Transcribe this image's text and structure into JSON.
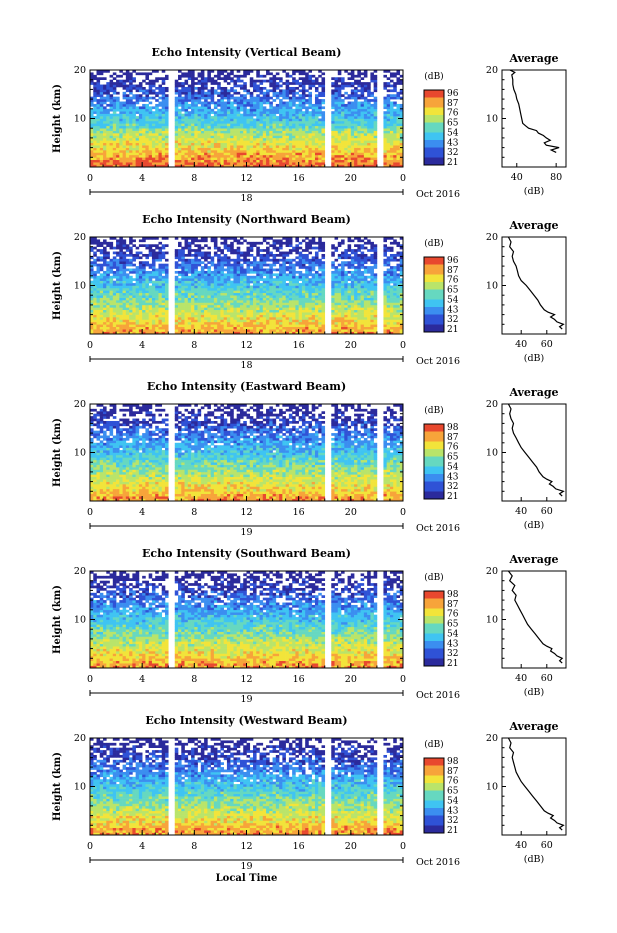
{
  "chart_data": [
    {
      "type": "heatmap",
      "title": "Echo Intensity (Vertical Beam)",
      "ylabel": "Height (km)",
      "xticks": [
        "0",
        "4",
        "8",
        "12",
        "16",
        "20",
        "0"
      ],
      "yticks": [
        "10",
        "20"
      ],
      "date_day": "18",
      "date_month": "Oct 2016",
      "colorbar_title": "(dB)",
      "colorbar_ticks": [
        "96",
        "87",
        "76",
        "65",
        "54",
        "43",
        "32",
        "21"
      ],
      "gaps_hours": [
        [
          5.8,
          6.3
        ],
        [
          17.8,
          18.3
        ],
        [
          21.8,
          22.3
        ]
      ],
      "avg_title": "Average",
      "avg_xlabel": "(dB)",
      "avg_xticks": [
        "40",
        "80"
      ],
      "avg_xlim": [
        25,
        90
      ],
      "avg_profile": [
        [
          3,
          80
        ],
        [
          3.5,
          75
        ],
        [
          4,
          83
        ],
        [
          4.5,
          70
        ],
        [
          5,
          68
        ],
        [
          5.5,
          74
        ],
        [
          6,
          70
        ],
        [
          6.5,
          67
        ],
        [
          7,
          62
        ],
        [
          7.5,
          60
        ],
        [
          8,
          52
        ],
        [
          8.5,
          49
        ],
        [
          9,
          46
        ],
        [
          10,
          45
        ],
        [
          11,
          44
        ],
        [
          12,
          43
        ],
        [
          13,
          42
        ],
        [
          14,
          40
        ],
        [
          15,
          39
        ],
        [
          16,
          37
        ],
        [
          17,
          36
        ],
        [
          18,
          36
        ],
        [
          19,
          35
        ],
        [
          19.5,
          38
        ],
        [
          20,
          33
        ]
      ]
    },
    {
      "type": "heatmap",
      "title": "Echo Intensity (Northward Beam)",
      "ylabel": "Height (km)",
      "xticks": [
        "0",
        "4",
        "8",
        "12",
        "16",
        "20",
        "0"
      ],
      "yticks": [
        "10",
        "20"
      ],
      "date_day": "18",
      "date_month": "Oct 2016",
      "colorbar_title": "(dB)",
      "colorbar_ticks": [
        "96",
        "87",
        "76",
        "65",
        "54",
        "43",
        "32",
        "21"
      ],
      "gaps_hours": [
        [
          5.8,
          6.3
        ],
        [
          17.8,
          18.3
        ],
        [
          21.8,
          22.3
        ]
      ],
      "avg_title": "Average",
      "avg_xlabel": "(dB)",
      "avg_xticks": [
        "40",
        "60"
      ],
      "avg_xlim": [
        25,
        75
      ],
      "avg_profile": [
        [
          1,
          72
        ],
        [
          1.5,
          70
        ],
        [
          2,
          73
        ],
        [
          2.5,
          68
        ],
        [
          3,
          66
        ],
        [
          3.5,
          63
        ],
        [
          4,
          66
        ],
        [
          4.5,
          61
        ],
        [
          5,
          58
        ],
        [
          6,
          55
        ],
        [
          7,
          53
        ],
        [
          8,
          50
        ],
        [
          9,
          47
        ],
        [
          10,
          44
        ],
        [
          11,
          40
        ],
        [
          12,
          38
        ],
        [
          13,
          37
        ],
        [
          14,
          36
        ],
        [
          15,
          34
        ],
        [
          16,
          33
        ],
        [
          17,
          34
        ],
        [
          18,
          31
        ],
        [
          19,
          32
        ],
        [
          20,
          30
        ]
      ]
    },
    {
      "type": "heatmap",
      "title": "Echo Intensity (Eastward Beam)",
      "ylabel": "Height (km)",
      "xticks": [
        "0",
        "4",
        "8",
        "12",
        "16",
        "20",
        "0"
      ],
      "yticks": [
        "10",
        "20"
      ],
      "date_day": "19",
      "date_month": "Oct 2016",
      "colorbar_title": "(dB)",
      "colorbar_ticks": [
        "98",
        "87",
        "76",
        "65",
        "54",
        "43",
        "32",
        "21"
      ],
      "gaps_hours": [
        [
          5.8,
          6.3
        ],
        [
          17.8,
          18.3
        ],
        [
          21.8,
          22.3
        ]
      ],
      "avg_title": "Average",
      "avg_xlabel": "(dB)",
      "avg_xticks": [
        "40",
        "60"
      ],
      "avg_xlim": [
        25,
        75
      ],
      "avg_profile": [
        [
          1,
          72
        ],
        [
          1.5,
          70
        ],
        [
          2,
          73
        ],
        [
          2.5,
          67
        ],
        [
          3,
          65
        ],
        [
          3.5,
          62
        ],
        [
          4,
          64
        ],
        [
          4.5,
          60
        ],
        [
          5,
          57
        ],
        [
          6,
          54
        ],
        [
          7,
          52
        ],
        [
          8,
          49
        ],
        [
          9,
          46
        ],
        [
          10,
          43
        ],
        [
          11,
          40
        ],
        [
          12,
          38
        ],
        [
          13,
          36
        ],
        [
          14,
          34
        ],
        [
          15,
          33
        ],
        [
          16,
          34
        ],
        [
          17,
          32
        ],
        [
          18,
          31
        ],
        [
          19,
          32
        ],
        [
          20,
          30
        ]
      ]
    },
    {
      "type": "heatmap",
      "title": "Echo Intensity (Southward Beam)",
      "ylabel": "Height (km)",
      "xticks": [
        "0",
        "4",
        "8",
        "12",
        "16",
        "20",
        "0"
      ],
      "yticks": [
        "10",
        "20"
      ],
      "date_day": "19",
      "date_month": "Oct 2016",
      "colorbar_title": "(dB)",
      "colorbar_ticks": [
        "98",
        "87",
        "76",
        "65",
        "54",
        "43",
        "32",
        "21"
      ],
      "gaps_hours": [
        [
          5.8,
          6.3
        ],
        [
          10.4,
          10.5
        ],
        [
          17.8,
          18.3
        ],
        [
          21.8,
          22.3
        ]
      ],
      "avg_title": "Average",
      "avg_xlabel": "(dB)",
      "avg_xticks": [
        "40",
        "60"
      ],
      "avg_xlim": [
        25,
        75
      ],
      "avg_profile": [
        [
          1,
          72
        ],
        [
          1.5,
          70
        ],
        [
          2,
          72
        ],
        [
          2.5,
          68
        ],
        [
          3,
          66
        ],
        [
          3.5,
          63
        ],
        [
          4,
          64
        ],
        [
          4.5,
          60
        ],
        [
          5,
          57
        ],
        [
          6,
          54
        ],
        [
          7,
          51
        ],
        [
          8,
          48
        ],
        [
          9,
          45
        ],
        [
          10,
          43
        ],
        [
          11,
          41
        ],
        [
          12,
          39
        ],
        [
          13,
          37
        ],
        [
          14,
          35
        ],
        [
          15,
          36
        ],
        [
          16,
          33
        ],
        [
          17,
          35
        ],
        [
          18,
          31
        ],
        [
          19,
          33
        ],
        [
          20,
          30
        ]
      ]
    },
    {
      "type": "heatmap",
      "title": "Echo Intensity (Westward Beam)",
      "ylabel": "Height (km)",
      "xlabel": "Local Time",
      "xticks": [
        "0",
        "4",
        "8",
        "12",
        "16",
        "20",
        "0"
      ],
      "yticks": [
        "10",
        "20"
      ],
      "date_day": "19",
      "date_month": "Oct 2016",
      "colorbar_title": "(dB)",
      "colorbar_ticks": [
        "98",
        "87",
        "76",
        "65",
        "54",
        "43",
        "32",
        "21"
      ],
      "gaps_hours": [
        [
          5.8,
          6.3
        ],
        [
          17.8,
          18.3
        ],
        [
          21.8,
          22.3
        ]
      ],
      "avg_title": "Average",
      "avg_xlabel": "(dB)",
      "avg_xticks": [
        "40",
        "60"
      ],
      "avg_xlim": [
        25,
        75
      ],
      "avg_profile": [
        [
          1,
          72
        ],
        [
          1.5,
          70
        ],
        [
          2,
          73
        ],
        [
          2.5,
          68
        ],
        [
          3,
          66
        ],
        [
          3.5,
          63
        ],
        [
          4,
          65
        ],
        [
          4.5,
          61
        ],
        [
          5,
          58
        ],
        [
          6,
          55
        ],
        [
          7,
          52
        ],
        [
          8,
          49
        ],
        [
          9,
          46
        ],
        [
          10,
          43
        ],
        [
          11,
          40
        ],
        [
          12,
          38
        ],
        [
          13,
          36
        ],
        [
          14,
          35
        ],
        [
          15,
          34
        ],
        [
          16,
          33
        ],
        [
          17,
          34
        ],
        [
          18,
          31
        ],
        [
          19,
          32
        ],
        [
          20,
          30
        ]
      ]
    }
  ],
  "colors": {
    "scale": [
      "#2b2a9c",
      "#2f52d6",
      "#3b8ef0",
      "#3fc4f2",
      "#66d8c0",
      "#b9e46a",
      "#f2e43a",
      "#f7a43a",
      "#e8482e"
    ],
    "gap": "#ffffff"
  }
}
